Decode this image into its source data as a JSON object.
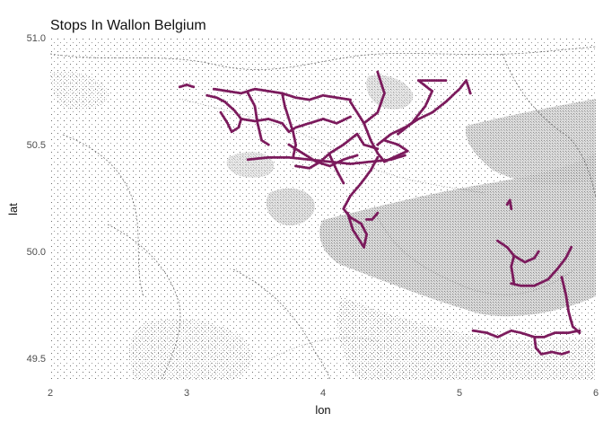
{
  "chart_data": {
    "type": "scatter",
    "title": "Stops In Wallon Belgium",
    "xlabel": "lon",
    "ylabel": "lat",
    "xlim": [
      2.0,
      6.0
    ],
    "ylim": [
      49.4,
      51.0
    ],
    "x_ticks": [
      2,
      3,
      4,
      5,
      6
    ],
    "y_ticks": [
      49.5,
      50.0,
      50.5,
      51.0
    ],
    "x_tick_labels": [
      "2",
      "3",
      "4",
      "5",
      "6"
    ],
    "y_tick_labels": [
      "49.5",
      "50.0",
      "50.5",
      "51.0"
    ],
    "grid": false,
    "legend": "none",
    "point_color": "#7b1a5c",
    "basemap": "grey dotted stipple terrain map (Stamen toner-style)",
    "routes": [
      {
        "points": [
          [
            3.15,
            50.73
          ],
          [
            3.22,
            50.72
          ],
          [
            3.28,
            50.7
          ],
          [
            3.35,
            50.66
          ],
          [
            3.4,
            50.62
          ],
          [
            3.38,
            50.58
          ],
          [
            3.33,
            50.56
          ],
          [
            3.3,
            50.6
          ],
          [
            3.25,
            50.65
          ]
        ]
      },
      {
        "points": [
          [
            3.2,
            50.76
          ],
          [
            3.3,
            50.75
          ],
          [
            3.4,
            50.74
          ],
          [
            3.5,
            50.76
          ],
          [
            3.6,
            50.75
          ],
          [
            3.7,
            50.74
          ],
          [
            3.8,
            50.72
          ],
          [
            3.9,
            50.71
          ],
          [
            4.0,
            50.73
          ],
          [
            4.1,
            50.72
          ],
          [
            4.2,
            50.71
          ]
        ]
      },
      {
        "points": [
          [
            3.4,
            50.62
          ],
          [
            3.5,
            50.61
          ],
          [
            3.6,
            50.62
          ],
          [
            3.7,
            50.6
          ],
          [
            3.75,
            50.56
          ],
          [
            3.8,
            50.58
          ],
          [
            3.9,
            50.6
          ],
          [
            4.0,
            50.62
          ],
          [
            4.1,
            50.6
          ],
          [
            4.2,
            50.63
          ]
        ]
      },
      {
        "points": [
          [
            3.45,
            50.74
          ],
          [
            3.5,
            50.68
          ],
          [
            3.52,
            50.6
          ],
          [
            3.55,
            50.52
          ],
          [
            3.6,
            50.5
          ]
        ]
      },
      {
        "points": [
          [
            3.7,
            50.74
          ],
          [
            3.72,
            50.68
          ],
          [
            3.75,
            50.62
          ],
          [
            3.78,
            50.56
          ],
          [
            3.8,
            50.5
          ],
          [
            3.78,
            50.44
          ]
        ]
      },
      {
        "points": [
          [
            2.95,
            50.77
          ],
          [
            3.0,
            50.78
          ],
          [
            3.05,
            50.77
          ]
        ]
      },
      {
        "points": [
          [
            3.45,
            50.43
          ],
          [
            3.6,
            50.44
          ],
          [
            3.75,
            50.44
          ],
          [
            3.9,
            50.43
          ],
          [
            4.05,
            50.42
          ],
          [
            4.2,
            50.41
          ],
          [
            4.35,
            50.42
          ],
          [
            4.5,
            50.43
          ],
          [
            4.6,
            50.45
          ]
        ]
      },
      {
        "points": [
          [
            3.75,
            50.5
          ],
          [
            3.85,
            50.46
          ],
          [
            3.95,
            50.42
          ],
          [
            4.05,
            50.4
          ],
          [
            4.15,
            50.43
          ],
          [
            4.25,
            50.45
          ]
        ]
      },
      {
        "points": [
          [
            3.8,
            50.4
          ],
          [
            3.9,
            50.39
          ],
          [
            3.98,
            50.42
          ],
          [
            4.05,
            50.46
          ],
          [
            4.15,
            50.5
          ],
          [
            4.25,
            50.55
          ],
          [
            4.3,
            50.5
          ],
          [
            4.4,
            50.48
          ]
        ]
      },
      {
        "points": [
          [
            4.2,
            50.7
          ],
          [
            4.25,
            50.65
          ],
          [
            4.3,
            50.6
          ],
          [
            4.35,
            50.52
          ],
          [
            4.4,
            50.46
          ],
          [
            4.45,
            50.42
          ],
          [
            4.55,
            50.45
          ],
          [
            4.62,
            50.47
          ],
          [
            4.55,
            50.5
          ],
          [
            4.45,
            50.52
          ]
        ]
      },
      {
        "points": [
          [
            4.3,
            50.6
          ],
          [
            4.4,
            50.65
          ],
          [
            4.45,
            50.74
          ],
          [
            4.4,
            50.84
          ]
        ]
      },
      {
        "points": [
          [
            4.4,
            50.5
          ],
          [
            4.5,
            50.55
          ],
          [
            4.6,
            50.58
          ],
          [
            4.7,
            50.62
          ],
          [
            4.8,
            50.65
          ],
          [
            4.9,
            50.7
          ],
          [
            5.0,
            50.76
          ],
          [
            5.05,
            50.8
          ],
          [
            5.08,
            50.74
          ]
        ]
      },
      {
        "points": [
          [
            4.55,
            50.55
          ],
          [
            4.65,
            50.6
          ],
          [
            4.75,
            50.68
          ],
          [
            4.8,
            50.75
          ],
          [
            4.7,
            50.8
          ],
          [
            4.9,
            50.8
          ]
        ]
      },
      {
        "points": [
          [
            4.4,
            50.44
          ],
          [
            4.35,
            50.38
          ],
          [
            4.28,
            50.32
          ],
          [
            4.2,
            50.26
          ],
          [
            4.15,
            50.2
          ],
          [
            4.2,
            50.16
          ],
          [
            4.28,
            50.13
          ],
          [
            4.32,
            50.08
          ],
          [
            4.3,
            50.02
          ],
          [
            4.22,
            50.1
          ],
          [
            4.18,
            50.18
          ]
        ]
      },
      {
        "points": [
          [
            4.05,
            50.45
          ],
          [
            4.1,
            50.38
          ],
          [
            4.15,
            50.32
          ]
        ]
      },
      {
        "points": [
          [
            4.32,
            50.15
          ],
          [
            4.36,
            50.15
          ],
          [
            4.4,
            50.18
          ]
        ]
      },
      {
        "points": [
          [
            5.35,
            50.22
          ],
          [
            5.37,
            50.24
          ],
          [
            5.38,
            50.2
          ]
        ]
      },
      {
        "points": [
          [
            5.28,
            50.05
          ],
          [
            5.35,
            50.02
          ],
          [
            5.4,
            49.98
          ],
          [
            5.48,
            49.95
          ],
          [
            5.55,
            49.97
          ],
          [
            5.58,
            50.0
          ]
        ]
      },
      {
        "points": [
          [
            5.4,
            49.98
          ],
          [
            5.38,
            49.93
          ],
          [
            5.4,
            49.85
          ]
        ]
      },
      {
        "points": [
          [
            5.38,
            49.85
          ],
          [
            5.45,
            49.84
          ],
          [
            5.55,
            49.84
          ],
          [
            5.65,
            49.87
          ],
          [
            5.72,
            49.92
          ],
          [
            5.78,
            49.97
          ],
          [
            5.82,
            50.02
          ]
        ]
      },
      {
        "points": [
          [
            5.75,
            49.88
          ],
          [
            5.78,
            49.8
          ],
          [
            5.8,
            49.72
          ],
          [
            5.83,
            49.65
          ],
          [
            5.88,
            49.62
          ]
        ]
      },
      {
        "points": [
          [
            5.1,
            49.63
          ],
          [
            5.2,
            49.62
          ],
          [
            5.28,
            49.6
          ],
          [
            5.38,
            49.63
          ],
          [
            5.45,
            49.62
          ],
          [
            5.55,
            49.6
          ],
          [
            5.62,
            49.6
          ],
          [
            5.7,
            49.62
          ],
          [
            5.8,
            49.62
          ],
          [
            5.88,
            49.63
          ]
        ]
      },
      {
        "points": [
          [
            5.55,
            49.6
          ],
          [
            5.56,
            49.55
          ],
          [
            5.6,
            49.52
          ],
          [
            5.68,
            49.53
          ],
          [
            5.75,
            49.52
          ],
          [
            5.8,
            49.53
          ]
        ]
      }
    ]
  },
  "axes": {
    "panel_background": "#ffffff"
  }
}
